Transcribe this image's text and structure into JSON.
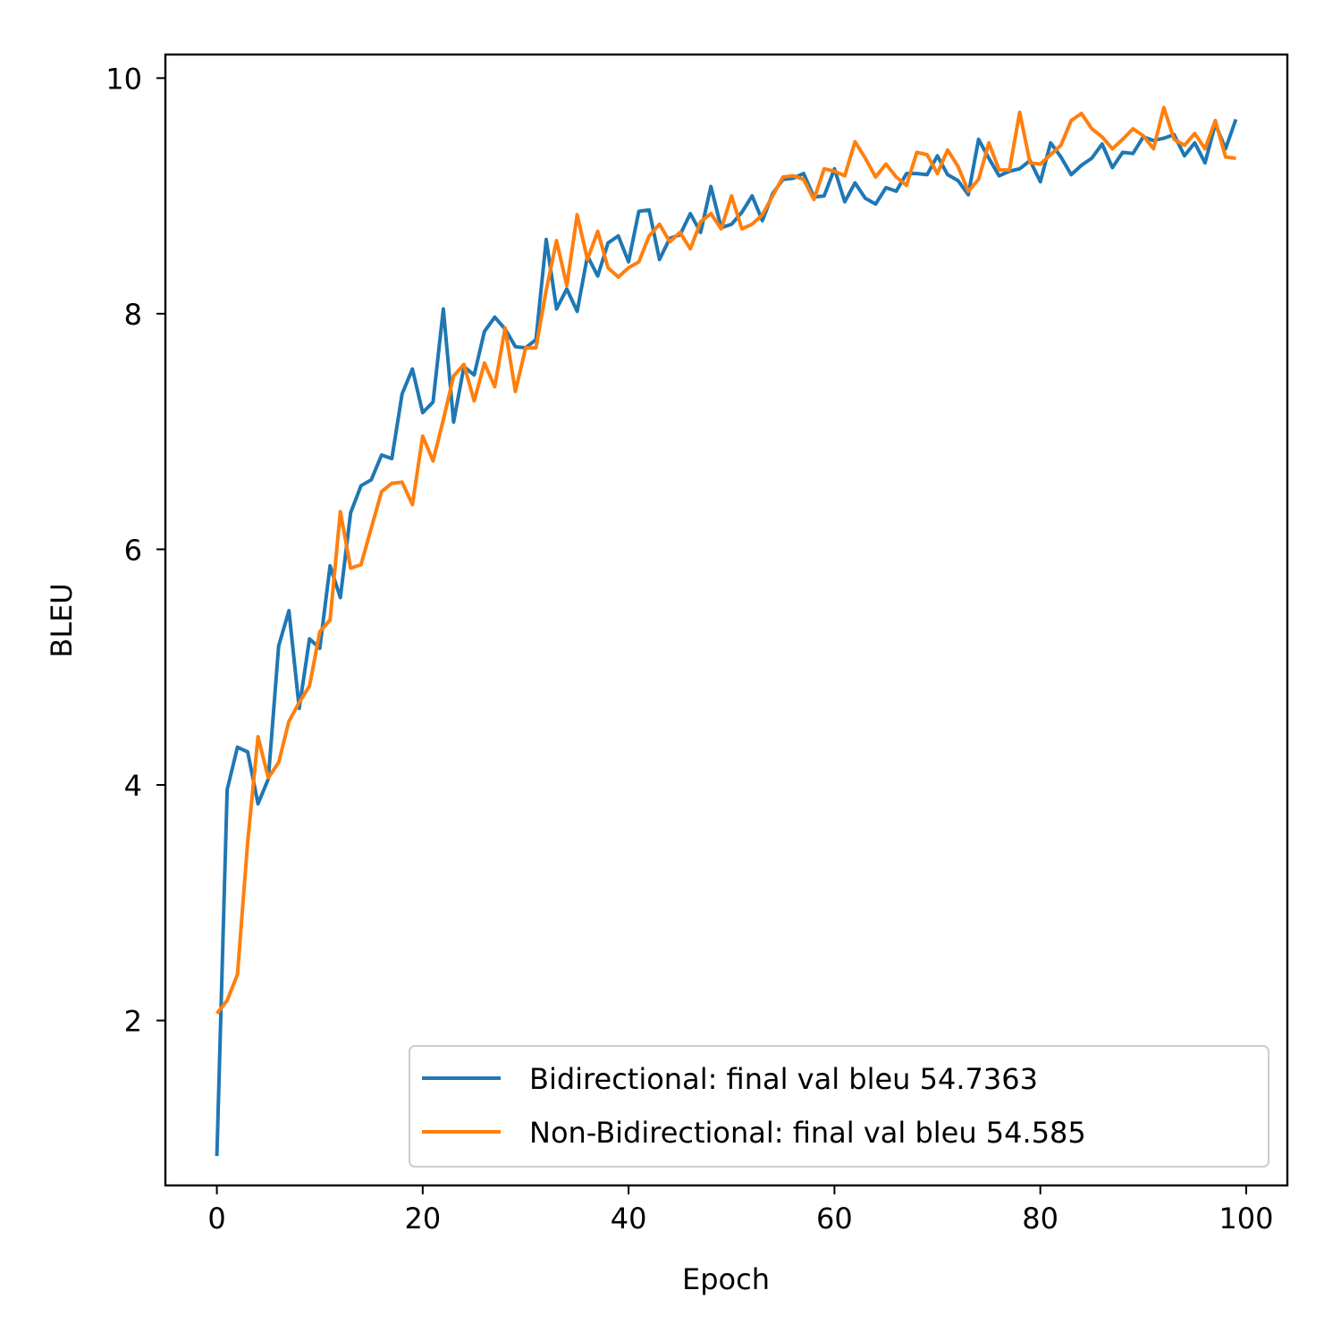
{
  "chart_data": {
    "type": "line",
    "title": "",
    "xlabel": "Epoch",
    "ylabel": "BLEU",
    "xlim": [
      -5,
      104
    ],
    "ylim": [
      0.6,
      10.2
    ],
    "xticks": [
      0,
      20,
      40,
      60,
      80,
      100
    ],
    "yticks": [
      2,
      4,
      6,
      8,
      10
    ],
    "grid": false,
    "legend_position": "lower-right",
    "series": [
      {
        "name": "Bidirectional: final val bleu 54.7363",
        "color": "#1f77b4",
        "x": [
          0,
          1,
          2,
          3,
          4,
          5,
          6,
          7,
          8,
          9,
          10,
          11,
          12,
          13,
          14,
          15,
          16,
          17,
          18,
          19,
          20,
          21,
          22,
          23,
          24,
          25,
          26,
          27,
          28,
          29,
          30,
          31,
          32,
          33,
          34,
          35,
          36,
          37,
          38,
          39,
          40,
          41,
          42,
          43,
          44,
          45,
          46,
          47,
          48,
          49,
          50,
          51,
          52,
          53,
          54,
          55,
          56,
          57,
          58,
          59,
          60,
          61,
          62,
          63,
          64,
          65,
          66,
          67,
          68,
          69,
          70,
          71,
          72,
          73,
          74,
          75,
          76,
          77,
          78,
          79,
          80,
          81,
          82,
          83,
          84,
          85,
          86,
          87,
          88,
          89,
          90,
          91,
          92,
          93,
          94,
          95,
          96,
          97,
          98,
          99
        ],
        "values": [
          0.85,
          3.96,
          4.32,
          4.28,
          3.84,
          4.05,
          5.18,
          5.48,
          4.65,
          5.24,
          5.16,
          5.86,
          5.59,
          6.31,
          6.54,
          6.59,
          6.8,
          6.77,
          7.32,
          7.53,
          7.16,
          7.25,
          8.04,
          7.08,
          7.55,
          7.48,
          7.85,
          7.97,
          7.87,
          7.72,
          7.71,
          7.78,
          8.63,
          8.04,
          8.21,
          8.02,
          8.49,
          8.32,
          8.6,
          8.66,
          8.44,
          8.87,
          8.88,
          8.46,
          8.64,
          8.67,
          8.85,
          8.69,
          9.08,
          8.73,
          8.76,
          8.86,
          9.0,
          8.79,
          9.02,
          9.14,
          9.15,
          9.19,
          8.99,
          9.0,
          9.23,
          8.95,
          9.11,
          8.98,
          8.93,
          9.07,
          9.04,
          9.19,
          9.19,
          9.18,
          9.34,
          9.18,
          9.13,
          9.01,
          9.48,
          9.32,
          9.17,
          9.21,
          9.23,
          9.3,
          9.12,
          9.45,
          9.33,
          9.18,
          9.26,
          9.32,
          9.44,
          9.24,
          9.37,
          9.36,
          9.5,
          9.47,
          9.49,
          9.52,
          9.34,
          9.45,
          9.28,
          9.61,
          9.4,
          9.65
        ]
      },
      {
        "name": "Non-Bidirectional: final val bleu 54.585",
        "color": "#ff7f0e",
        "x": [
          0,
          1,
          2,
          3,
          4,
          5,
          6,
          7,
          8,
          9,
          10,
          11,
          12,
          13,
          14,
          15,
          16,
          17,
          18,
          19,
          20,
          21,
          22,
          23,
          24,
          25,
          26,
          27,
          28,
          29,
          30,
          31,
          32,
          33,
          34,
          35,
          36,
          37,
          38,
          39,
          40,
          41,
          42,
          43,
          44,
          45,
          46,
          47,
          48,
          49,
          50,
          51,
          52,
          53,
          54,
          55,
          56,
          57,
          58,
          59,
          60,
          61,
          62,
          63,
          64,
          65,
          66,
          67,
          68,
          69,
          70,
          71,
          72,
          73,
          74,
          75,
          76,
          77,
          78,
          79,
          80,
          81,
          82,
          83,
          84,
          85,
          86,
          87,
          88,
          89,
          90,
          91,
          92,
          93,
          94,
          95,
          96,
          97,
          98,
          99
        ],
        "values": [
          2.06,
          2.17,
          2.39,
          3.52,
          4.41,
          4.06,
          4.19,
          4.54,
          4.7,
          4.84,
          5.3,
          5.4,
          6.32,
          5.84,
          5.87,
          6.18,
          6.49,
          6.56,
          6.57,
          6.38,
          6.96,
          6.75,
          7.1,
          7.47,
          7.57,
          7.26,
          7.58,
          7.38,
          7.88,
          7.34,
          7.71,
          7.71,
          8.2,
          8.62,
          8.24,
          8.84,
          8.46,
          8.7,
          8.39,
          8.31,
          8.39,
          8.44,
          8.66,
          8.76,
          8.61,
          8.69,
          8.55,
          8.78,
          8.85,
          8.72,
          9.0,
          8.72,
          8.76,
          8.84,
          9.0,
          9.16,
          9.17,
          9.14,
          8.97,
          9.23,
          9.21,
          9.17,
          9.46,
          9.32,
          9.16,
          9.27,
          9.16,
          9.09,
          9.37,
          9.35,
          9.19,
          9.39,
          9.25,
          9.04,
          9.14,
          9.45,
          9.22,
          9.22,
          9.71,
          9.28,
          9.27,
          9.35,
          9.43,
          9.64,
          9.7,
          9.57,
          9.5,
          9.4,
          9.48,
          9.57,
          9.51,
          9.4,
          9.75,
          9.48,
          9.43,
          9.53,
          9.4,
          9.64,
          9.33,
          9.32
        ]
      }
    ]
  }
}
